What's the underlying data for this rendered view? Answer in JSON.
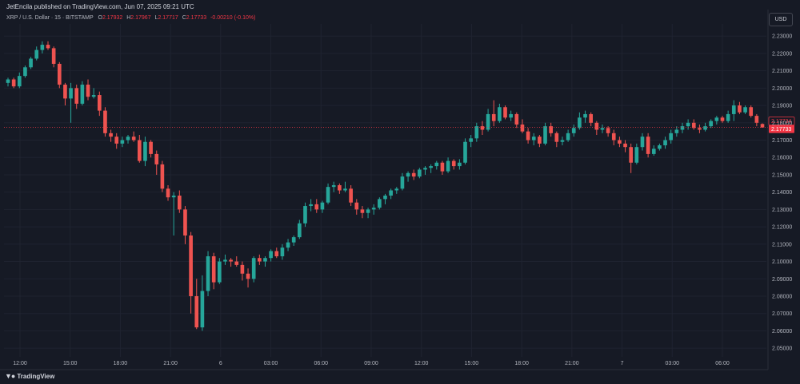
{
  "header": {
    "publisher_line": "JetEncila published on TradingView.com, Jun 07, 2025 09:21 UTC",
    "symbol": "XRP / U.S. Dollar · 15 · BITSTAMP",
    "ohlc": {
      "o_label": "O",
      "o_value": "2.17932",
      "h_label": "H",
      "h_value": "2.17967",
      "l_label": "L",
      "l_value": "2.17717",
      "c_label": "C",
      "c_value": "2.17733",
      "change": "-0.00210 (-0.10%)"
    },
    "currency_badge": "USD"
  },
  "footer": {
    "logo_text": "TradingView"
  },
  "colors": {
    "background": "#161a25",
    "grid": "#1f2330",
    "up": "#26a69a",
    "down": "#ef5350",
    "price_line": "#f23645"
  },
  "chart_data": {
    "type": "candlestick",
    "title": "XRP / U.S. Dollar · 15 · BITSTAMP",
    "ylim": [
      2.045,
      2.237
    ],
    "y_ticks": [
      "2.23000",
      "2.22000",
      "2.21000",
      "2.20000",
      "2.19000",
      "2.18000",
      "2.17000",
      "2.16000",
      "2.15000",
      "2.14000",
      "2.13000",
      "2.12000",
      "2.11000",
      "2.10000",
      "2.09000",
      "2.08000",
      "2.07000",
      "2.06000",
      "2.05000"
    ],
    "x_ticks": [
      "12:00",
      "15:00",
      "18:00",
      "21:00",
      "6",
      "03:00",
      "06:00",
      "09:00",
      "12:00",
      "15:00",
      "18:00",
      "21:00",
      "7",
      "03:00",
      "06:00"
    ],
    "current_price": {
      "value": 2.17733,
      "label": "2.17733",
      "secondary_label": "2.17734"
    },
    "series": [
      {
        "candles": [
          [
            2.203,
            2.206,
            2.201,
            2.205
          ],
          [
            2.205,
            2.206,
            2.2,
            2.201
          ],
          [
            2.201,
            2.209,
            2.2,
            2.207
          ],
          [
            2.207,
            2.213,
            2.206,
            2.212
          ],
          [
            2.212,
            2.218,
            2.211,
            2.217
          ],
          [
            2.217,
            2.224,
            2.216,
            2.222
          ],
          [
            2.222,
            2.227,
            2.22,
            2.225
          ],
          [
            2.225,
            2.227,
            2.222,
            2.223
          ],
          [
            2.223,
            2.224,
            2.212,
            2.214
          ],
          [
            2.214,
            2.215,
            2.2,
            2.202
          ],
          [
            2.202,
            2.203,
            2.19,
            2.194
          ],
          [
            2.194,
            2.203,
            2.18,
            2.2
          ],
          [
            2.2,
            2.202,
            2.188,
            2.191
          ],
          [
            2.191,
            2.204,
            2.19,
            2.202
          ],
          [
            2.202,
            2.205,
            2.193,
            2.195
          ],
          [
            2.195,
            2.2,
            2.194,
            2.196
          ],
          [
            2.196,
            2.198,
            2.184,
            2.187
          ],
          [
            2.187,
            2.189,
            2.172,
            2.174
          ],
          [
            2.174,
            2.176,
            2.169,
            2.172
          ],
          [
            2.172,
            2.174,
            2.165,
            2.168
          ],
          [
            2.168,
            2.172,
            2.166,
            2.17
          ],
          [
            2.17,
            2.173,
            2.168,
            2.172
          ],
          [
            2.172,
            2.175,
            2.169,
            2.17
          ],
          [
            2.17,
            2.173,
            2.157,
            2.158
          ],
          [
            2.158,
            2.172,
            2.155,
            2.169
          ],
          [
            2.169,
            2.17,
            2.16,
            2.162
          ],
          [
            2.162,
            2.164,
            2.15,
            2.156
          ],
          [
            2.156,
            2.158,
            2.14,
            2.142
          ],
          [
            2.142,
            2.144,
            2.135,
            2.137
          ],
          [
            2.137,
            2.14,
            2.115,
            2.138
          ],
          [
            2.138,
            2.141,
            2.128,
            2.13
          ],
          [
            2.13,
            2.132,
            2.11,
            2.115
          ],
          [
            2.115,
            2.117,
            2.07,
            2.08
          ],
          [
            2.08,
            2.09,
            2.061,
            2.062
          ],
          [
            2.062,
            2.092,
            2.06,
            2.083
          ],
          [
            2.083,
            2.106,
            2.08,
            2.103
          ],
          [
            2.103,
            2.105,
            2.084,
            2.088
          ],
          [
            2.088,
            2.102,
            2.087,
            2.1
          ],
          [
            2.1,
            2.104,
            2.098,
            2.101
          ],
          [
            2.101,
            2.102,
            2.097,
            2.1
          ],
          [
            2.1,
            2.103,
            2.097,
            2.098
          ],
          [
            2.098,
            2.1,
            2.089,
            2.093
          ],
          [
            2.093,
            2.096,
            2.085,
            2.09
          ],
          [
            2.09,
            2.103,
            2.088,
            2.102
          ],
          [
            2.102,
            2.104,
            2.098,
            2.1
          ],
          [
            2.1,
            2.103,
            2.097,
            2.102
          ],
          [
            2.102,
            2.107,
            2.1,
            2.106
          ],
          [
            2.106,
            2.108,
            2.102,
            2.103
          ],
          [
            2.103,
            2.11,
            2.101,
            2.108
          ],
          [
            2.108,
            2.113,
            2.106,
            2.111
          ],
          [
            2.111,
            2.115,
            2.109,
            2.114
          ],
          [
            2.114,
            2.124,
            2.113,
            2.122
          ],
          [
            2.122,
            2.134,
            2.12,
            2.132
          ],
          [
            2.132,
            2.136,
            2.129,
            2.133
          ],
          [
            2.133,
            2.136,
            2.128,
            2.13
          ],
          [
            2.13,
            2.135,
            2.128,
            2.134
          ],
          [
            2.134,
            2.145,
            2.133,
            2.143
          ],
          [
            2.143,
            2.146,
            2.14,
            2.144
          ],
          [
            2.144,
            2.145,
            2.139,
            2.141
          ],
          [
            2.141,
            2.146,
            2.14,
            2.142
          ],
          [
            2.142,
            2.144,
            2.132,
            2.134
          ],
          [
            2.134,
            2.136,
            2.127,
            2.13
          ],
          [
            2.13,
            2.132,
            2.125,
            2.128
          ],
          [
            2.128,
            2.131,
            2.125,
            2.13
          ],
          [
            2.13,
            2.133,
            2.127,
            2.131
          ],
          [
            2.131,
            2.137,
            2.13,
            2.136
          ],
          [
            2.136,
            2.139,
            2.133,
            2.138
          ],
          [
            2.138,
            2.142,
            2.136,
            2.141
          ],
          [
            2.141,
            2.143,
            2.139,
            2.142
          ],
          [
            2.142,
            2.151,
            2.141,
            2.149
          ],
          [
            2.149,
            2.152,
            2.146,
            2.151
          ],
          [
            2.151,
            2.153,
            2.147,
            2.149
          ],
          [
            2.149,
            2.154,
            2.148,
            2.153
          ],
          [
            2.153,
            2.155,
            2.15,
            2.154
          ],
          [
            2.154,
            2.156,
            2.151,
            2.155
          ],
          [
            2.155,
            2.158,
            2.153,
            2.157
          ],
          [
            2.157,
            2.158,
            2.15,
            2.152
          ],
          [
            2.152,
            2.16,
            2.151,
            2.158
          ],
          [
            2.158,
            2.159,
            2.153,
            2.155
          ],
          [
            2.155,
            2.159,
            2.153,
            2.157
          ],
          [
            2.157,
            2.171,
            2.156,
            2.169
          ],
          [
            2.169,
            2.173,
            2.166,
            2.171
          ],
          [
            2.171,
            2.18,
            2.169,
            2.178
          ],
          [
            2.178,
            2.181,
            2.173,
            2.176
          ],
          [
            2.176,
            2.188,
            2.175,
            2.185
          ],
          [
            2.185,
            2.193,
            2.178,
            2.181
          ],
          [
            2.181,
            2.191,
            2.18,
            2.189
          ],
          [
            2.189,
            2.19,
            2.182,
            2.183
          ],
          [
            2.183,
            2.187,
            2.181,
            2.185
          ],
          [
            2.185,
            2.186,
            2.177,
            2.179
          ],
          [
            2.179,
            2.182,
            2.174,
            2.175
          ],
          [
            2.175,
            2.177,
            2.168,
            2.17
          ],
          [
            2.17,
            2.174,
            2.167,
            2.172
          ],
          [
            2.172,
            2.173,
            2.166,
            2.168
          ],
          [
            2.168,
            2.18,
            2.167,
            2.178
          ],
          [
            2.178,
            2.18,
            2.172,
            2.174
          ],
          [
            2.174,
            2.175,
            2.166,
            2.169
          ],
          [
            2.169,
            2.172,
            2.167,
            2.17
          ],
          [
            2.17,
            2.176,
            2.169,
            2.174
          ],
          [
            2.174,
            2.179,
            2.172,
            2.177
          ],
          [
            2.177,
            2.186,
            2.176,
            2.183
          ],
          [
            2.183,
            2.187,
            2.18,
            2.185
          ],
          [
            2.185,
            2.186,
            2.178,
            2.18
          ],
          [
            2.18,
            2.181,
            2.173,
            2.176
          ],
          [
            2.176,
            2.179,
            2.174,
            2.177
          ],
          [
            2.177,
            2.178,
            2.172,
            2.174
          ],
          [
            2.174,
            2.176,
            2.167,
            2.17
          ],
          [
            2.17,
            2.172,
            2.166,
            2.168
          ],
          [
            2.168,
            2.17,
            2.163,
            2.166
          ],
          [
            2.166,
            2.168,
            2.151,
            2.157
          ],
          [
            2.157,
            2.168,
            2.156,
            2.166
          ],
          [
            2.166,
            2.174,
            2.164,
            2.172
          ],
          [
            2.172,
            2.174,
            2.16,
            2.162
          ],
          [
            2.162,
            2.167,
            2.161,
            2.165
          ],
          [
            2.165,
            2.168,
            2.164,
            2.167
          ],
          [
            2.167,
            2.172,
            2.165,
            2.17
          ],
          [
            2.17,
            2.176,
            2.168,
            2.174
          ],
          [
            2.174,
            2.178,
            2.172,
            2.176
          ],
          [
            2.176,
            2.18,
            2.174,
            2.178
          ],
          [
            2.178,
            2.182,
            2.176,
            2.18
          ],
          [
            2.18,
            2.182,
            2.176,
            2.177
          ],
          [
            2.177,
            2.179,
            2.174,
            2.176
          ],
          [
            2.176,
            2.18,
            2.175,
            2.178
          ],
          [
            2.178,
            2.182,
            2.177,
            2.181
          ],
          [
            2.181,
            2.184,
            2.179,
            2.183
          ],
          [
            2.183,
            2.184,
            2.18,
            2.181
          ],
          [
            2.181,
            2.187,
            2.18,
            2.185
          ],
          [
            2.185,
            2.193,
            2.181,
            2.19
          ],
          [
            2.19,
            2.192,
            2.185,
            2.186
          ],
          [
            2.186,
            2.19,
            2.185,
            2.189
          ],
          [
            2.189,
            2.19,
            2.183,
            2.184
          ],
          [
            2.184,
            2.185,
            2.178,
            2.18
          ],
          [
            2.1793,
            2.1797,
            2.1772,
            2.1773
          ]
        ]
      }
    ]
  }
}
